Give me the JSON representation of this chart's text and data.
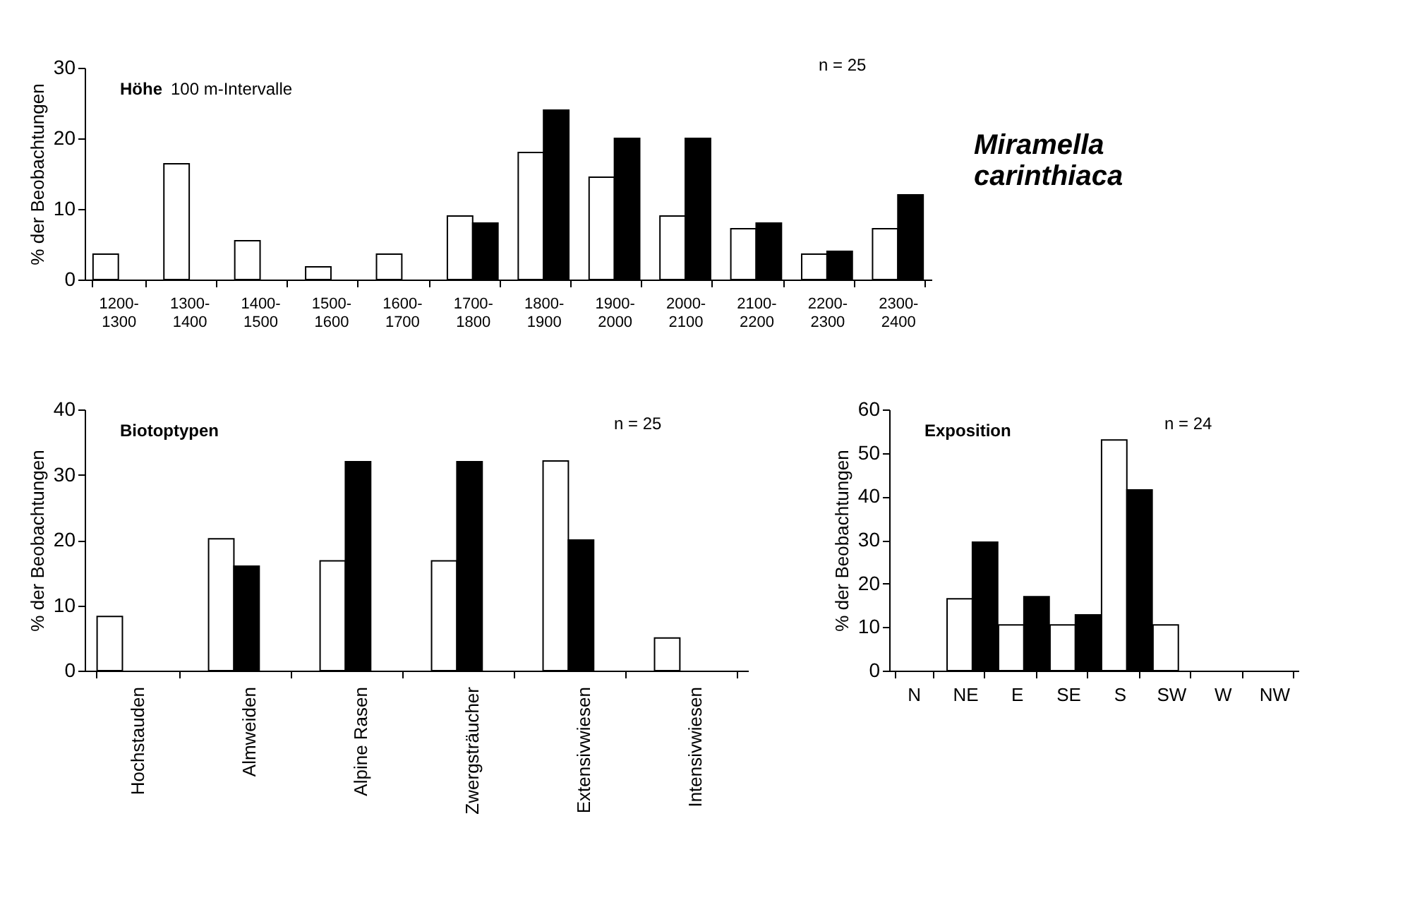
{
  "chart_data": [
    {
      "type": "bar",
      "title": "Höhe",
      "ylabel": "% der Beobachtungen",
      "annotations": [
        "100 m-Intervalle",
        "n = 25",
        "Miramella carinthiaca"
      ],
      "categories": [
        "1200-1300",
        "1300-1400",
        "1400-1500",
        "1500-1600",
        "1600-1700",
        "1700-1800",
        "1800-1900",
        "1900-2000",
        "2000-2100",
        "2100-2200",
        "2200-2300",
        "2300-2400"
      ],
      "ylim": [
        0,
        30
      ],
      "yticks": [
        0,
        10,
        20,
        30
      ],
      "series": [
        {
          "color": "#ffffff",
          "values": [
            3.6,
            16.4,
            5.5,
            1.8,
            3.6,
            9,
            18,
            14.5,
            9,
            7.2,
            3.6,
            7.2
          ]
        },
        {
          "color": "#000000",
          "values": [
            null,
            null,
            null,
            null,
            null,
            8,
            24,
            20,
            20,
            8,
            4,
            12
          ]
        }
      ]
    },
    {
      "type": "bar",
      "title": "Biotoptypen",
      "ylabel": "% der Beobachtungen",
      "annotations": [
        "n = 25"
      ],
      "categories": [
        "Hochstauden",
        "Almweiden",
        "Alpine Rasen",
        "Zwergsträucher",
        "Extensivwiesen",
        "Intensivwiesen"
      ],
      "ylim": [
        0,
        40
      ],
      "yticks": [
        0,
        10,
        20,
        30,
        40
      ],
      "series": [
        {
          "color": "#ffffff",
          "values": [
            8.3,
            20.2,
            16.8,
            16.8,
            32.1,
            5
          ]
        },
        {
          "color": "#000000",
          "values": [
            null,
            16,
            32,
            32,
            20,
            null
          ]
        }
      ]
    },
    {
      "type": "bar",
      "title": "Exposition",
      "ylabel": "% der Beobachtungen",
      "annotations": [
        "n = 24"
      ],
      "categories": [
        "N",
        "NE",
        "E",
        "SE",
        "S",
        "SW",
        "W",
        "NW"
      ],
      "ylim": [
        0,
        60
      ],
      "yticks": [
        0,
        10,
        20,
        30,
        40,
        50,
        60
      ],
      "series": [
        {
          "color": "#ffffff",
          "values": [
            null,
            16.5,
            10.5,
            10.5,
            53,
            10.5,
            null,
            null
          ]
        },
        {
          "color": "#000000",
          "values": [
            null,
            29.5,
            17,
            12.8,
            41.5,
            null,
            null,
            null
          ]
        }
      ]
    }
  ]
}
